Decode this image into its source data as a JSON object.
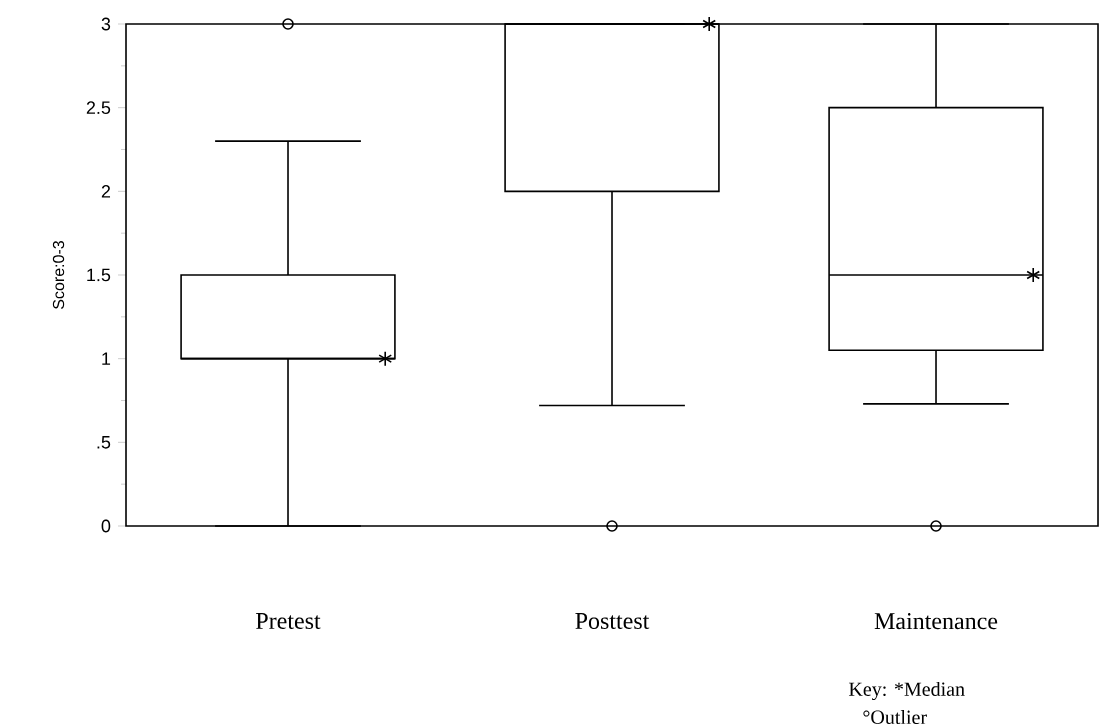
{
  "chart_data": {
    "type": "box",
    "ylabel": "Score:0-3",
    "categories": [
      "Pretest",
      "Posttest",
      "Maintenance"
    ],
    "boxes": [
      {
        "low": 0,
        "q1": 1.0,
        "median": 1.0,
        "q3": 1.5,
        "high": 2.3,
        "outliers": [
          3
        ]
      },
      {
        "low": 0.72,
        "q1": 2.0,
        "median": 3.0,
        "q3": 3.0,
        "high": 3.0,
        "outliers": [
          0
        ]
      },
      {
        "low": 0.73,
        "q1": 1.05,
        "median": 1.5,
        "q3": 2.5,
        "high": 3.0,
        "outliers": [
          0
        ]
      }
    ],
    "series": [
      {
        "type": "scatter",
        "marker": "cross",
        "x": [
          "Pretest",
          "Posttest",
          "Maintenance"
        ],
        "values": [
          1.0,
          3.0,
          1.5
        ]
      }
    ],
    "ylim": [
      0,
      3
    ],
    "yticks": [
      0,
      {
        "value": 0.5,
        "label": ".5"
      },
      1,
      1.5,
      2,
      2.5,
      3
    ],
    "annotations": [
      "Key: *Median",
      "°Outlier"
    ]
  }
}
